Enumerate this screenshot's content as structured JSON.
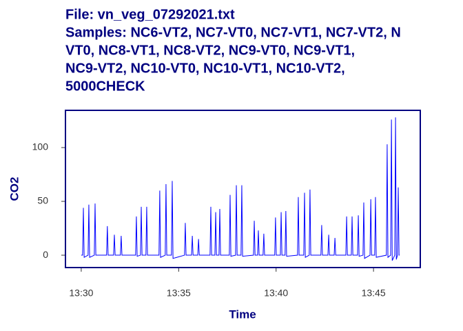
{
  "chart_data": {
    "type": "line",
    "title": [
      "File:  vn_veg_07292021.txt",
      "Samples: NC6-VT2, NC7-VT0, NC7-VT1, NC7-VT2, N",
      "VT0, NC8-VT1, NC8-VT2, NC9-VT0, NC9-VT1,",
      "NC9-VT2, NC10-VT0, NC10-VT1, NC10-VT2,",
      "5000CHECK"
    ],
    "x_label": "Time",
    "y_label": "CO2",
    "color": "#0000ff",
    "x": [
      810.0,
      810.07,
      810.11,
      810.15,
      810.35,
      810.39,
      810.43,
      810.67,
      810.71,
      810.75,
      811.3,
      811.34,
      811.38,
      811.66,
      811.7,
      811.74,
      812.01,
      812.05,
      812.09,
      812.79,
      812.83,
      812.87,
      813.04,
      813.08,
      813.12,
      813.32,
      813.36,
      813.4,
      813.99,
      814.03,
      814.07,
      814.31,
      814.35,
      814.39,
      814.63,
      814.67,
      814.71,
      815.3,
      815.34,
      815.38,
      815.66,
      815.7,
      815.74,
      815.98,
      816.02,
      816.06,
      816.61,
      816.65,
      816.69,
      816.86,
      816.9,
      816.94,
      817.07,
      817.11,
      817.15,
      817.6,
      817.64,
      817.68,
      817.92,
      817.96,
      818.0,
      818.2,
      818.24,
      818.28,
      818.84,
      818.88,
      818.92,
      819.05,
      819.09,
      819.13,
      819.33,
      819.37,
      819.41,
      819.93,
      819.97,
      820.01,
      820.22,
      820.26,
      820.3,
      820.46,
      820.5,
      820.54,
      821.1,
      821.14,
      821.18,
      821.42,
      821.46,
      821.5,
      821.7,
      821.74,
      821.78,
      822.3,
      822.34,
      822.38,
      822.66,
      822.7,
      822.74,
      822.98,
      823.02,
      823.06,
      823.58,
      823.62,
      823.66,
      823.86,
      823.9,
      823.94,
      824.18,
      824.22,
      824.26,
      824.46,
      824.5,
      824.54,
      824.82,
      824.86,
      824.9,
      825.06,
      825.1,
      825.14,
      825.66,
      825.7,
      825.74,
      825.88,
      825.92,
      825.96,
      826.09,
      826.13,
      826.17,
      826.23,
      826.27,
      826.31,
      826.34
    ],
    "values": [
      0,
      0,
      44,
      -2,
      0,
      47,
      -2,
      0,
      48,
      0,
      0,
      27,
      0,
      0,
      19,
      0,
      0,
      18,
      0,
      0,
      36,
      -1,
      0,
      45,
      0,
      0,
      45,
      0,
      0,
      60,
      -2,
      0,
      66,
      0,
      0,
      69,
      -3,
      0,
      30,
      0,
      0,
      18,
      0,
      0,
      15,
      0,
      0,
      45,
      0,
      0,
      40,
      0,
      0,
      43,
      0,
      0,
      56,
      -1,
      0,
      65,
      0,
      0,
      65,
      -1,
      0,
      32,
      0,
      0,
      23,
      0,
      0,
      20,
      0,
      0,
      35,
      0,
      0,
      40,
      0,
      0,
      41,
      -1,
      0,
      54,
      0,
      0,
      58,
      -2,
      0,
      61,
      0,
      0,
      28,
      0,
      0,
      19,
      0,
      0,
      16,
      0,
      0,
      36,
      0,
      0,
      36,
      0,
      0,
      37,
      -1,
      0,
      49,
      -3,
      0,
      52,
      0,
      0,
      54,
      -2,
      0,
      103,
      -2,
      0,
      126,
      -5,
      0,
      128,
      -4,
      0,
      63,
      0,
      0
    ],
    "xlim": [
      809.19,
      827.4
    ],
    "xticks": [
      {
        "value": 810,
        "label": "13:30"
      },
      {
        "value": 815,
        "label": "13:35"
      },
      {
        "value": 820,
        "label": "13:40"
      },
      {
        "value": 825,
        "label": "13:45"
      }
    ],
    "ylim": [
      -11.5,
      134.6
    ],
    "yticks": [
      0,
      50,
      100
    ],
    "grid": false
  }
}
